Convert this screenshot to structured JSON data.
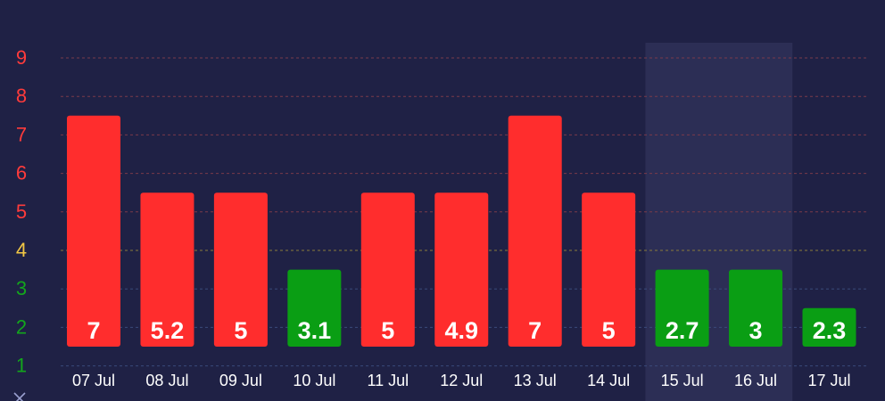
{
  "chart_data": {
    "type": "bar",
    "categories": [
      "07 Jul",
      "08 Jul",
      "09 Jul",
      "10 Jul",
      "11 Jul",
      "12 Jul",
      "13 Jul",
      "14 Jul",
      "15 Jul",
      "16 Jul",
      "17 Jul"
    ],
    "bar_levels": [
      7.5,
      5.5,
      5.5,
      3.5,
      5.5,
      5.5,
      7.5,
      5.5,
      3.5,
      3.5,
      2.5
    ],
    "value_labels": [
      "7",
      "5.2",
      "5",
      "3.1",
      "5",
      "4.9",
      "7",
      "5",
      "2.7",
      "3",
      "2.3"
    ],
    "bar_colors": [
      "#ff2d2d",
      "#ff2d2d",
      "#ff2d2d",
      "#0a9e14",
      "#ff2d2d",
      "#ff2d2d",
      "#ff2d2d",
      "#ff2d2d",
      "#0a9e14",
      "#0a9e14",
      "#0a9e14"
    ],
    "highlighted_categories": [
      "15 Jul",
      "16 Jul"
    ],
    "yticks": [
      {
        "label": "9",
        "value": 9,
        "color": "#ff3b3b"
      },
      {
        "label": "8",
        "value": 8,
        "color": "#ff3b3b"
      },
      {
        "label": "7",
        "value": 7,
        "color": "#ff3b3b"
      },
      {
        "label": "6",
        "value": 6,
        "color": "#ff3b3b"
      },
      {
        "label": "5",
        "value": 5,
        "color": "#ff3b3b"
      },
      {
        "label": "4",
        "value": 4,
        "color": "#f2c744"
      },
      {
        "label": "3",
        "value": 3,
        "color": "#13a61c"
      },
      {
        "label": "2",
        "value": 2,
        "color": "#13a61c"
      },
      {
        "label": "1",
        "value": 1,
        "color": "#13a61c"
      }
    ],
    "ylim": [
      1,
      9
    ],
    "baseline": 1.5,
    "grid": true,
    "grid_colors": {
      "high": "#7a3a4a",
      "mid": "#8a7a3a",
      "low": "#3a4a7a"
    },
    "background": "#1f2145",
    "highlight_color": "#2c2e55",
    "label_color": "#ffffff",
    "corner_icon": "close-icon"
  }
}
